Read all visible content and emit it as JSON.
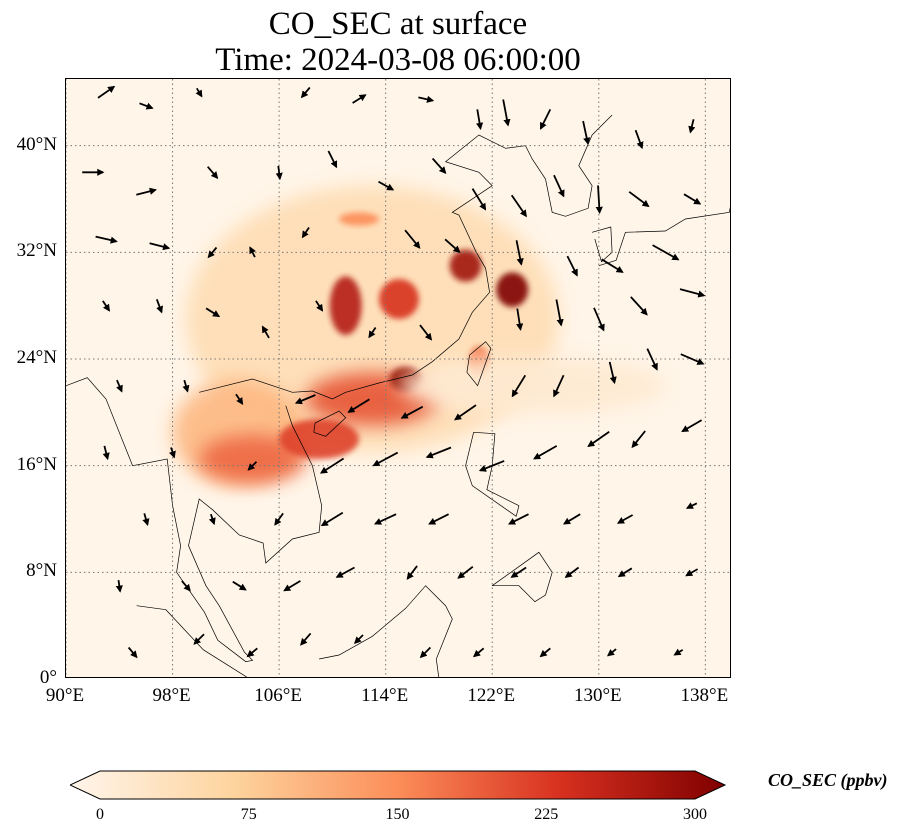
{
  "title": {
    "line1": "CO_SEC at surface",
    "line2": "Time: 2024-03-08 06:00:00"
  },
  "map": {
    "projection": "PlateCarree",
    "lon_range": [
      90,
      140
    ],
    "lat_range": [
      0,
      45
    ],
    "gridlines": true,
    "field": "CO_SEC",
    "overlay": "wind vectors"
  },
  "x_ticks": [
    {
      "lon": 90,
      "label": "90°E"
    },
    {
      "lon": 98,
      "label": "98°E"
    },
    {
      "lon": 106,
      "label": "106°E"
    },
    {
      "lon": 114,
      "label": "114°E"
    },
    {
      "lon": 122,
      "label": "122°E"
    },
    {
      "lon": 130,
      "label": "130°E"
    },
    {
      "lon": 138,
      "label": "138°E"
    }
  ],
  "y_ticks": [
    {
      "lat": 0,
      "label": "0°"
    },
    {
      "lat": 8,
      "label": "8°N"
    },
    {
      "lat": 16,
      "label": "16°N"
    },
    {
      "lat": 24,
      "label": "24°N"
    },
    {
      "lat": 32,
      "label": "32°N"
    },
    {
      "lat": 40,
      "label": "40°N"
    }
  ],
  "colorbar": {
    "label": "CO_SEC (ppbv)",
    "min": 0,
    "max": 300,
    "extend": "both",
    "colors": [
      "#fff5eb",
      "#fdd49e",
      "#fc8d59",
      "#d7301f",
      "#7f0000"
    ],
    "ticks": [
      {
        "value": 0,
        "label": "0"
      },
      {
        "value": 75,
        "label": "75"
      },
      {
        "value": 150,
        "label": "150"
      },
      {
        "value": 225,
        "label": "225"
      },
      {
        "value": 300,
        "label": "300"
      }
    ]
  },
  "plumes": [
    {
      "lon": 113,
      "lat": 27,
      "rlon": 14,
      "rlat": 10,
      "level": 0.18
    },
    {
      "lon": 103,
      "lat": 18.5,
      "rlon": 5,
      "rlat": 4,
      "level": 0.35
    },
    {
      "lon": 104,
      "lat": 16.5,
      "rlon": 4,
      "rlat": 1.8,
      "level": 0.6
    },
    {
      "lon": 113,
      "lat": 21,
      "rlon": 5,
      "rlat": 2,
      "level": 0.65
    },
    {
      "lon": 109,
      "lat": 18,
      "rlon": 3,
      "rlat": 1.5,
      "level": 0.7
    },
    {
      "lon": 115.5,
      "lat": 22.5,
      "rlon": 1.2,
      "rlat": 0.9,
      "level": 0.95
    },
    {
      "lon": 111,
      "lat": 28,
      "rlon": 1.2,
      "rlat": 2.2,
      "level": 0.85
    },
    {
      "lon": 115,
      "lat": 28.5,
      "rlon": 1.5,
      "rlat": 1.5,
      "level": 0.75
    },
    {
      "lon": 120,
      "lat": 31,
      "rlon": 1.2,
      "rlat": 1.2,
      "level": 0.9
    },
    {
      "lon": 123.5,
      "lat": 29.2,
      "rlon": 1.2,
      "rlat": 1.3,
      "level": 1.0
    },
    {
      "lon": 121,
      "lat": 23.8,
      "rlon": 0.8,
      "rlat": 1.2,
      "level": 0.55
    },
    {
      "lon": 112,
      "lat": 34.5,
      "rlon": 1.5,
      "rlat": 0.5,
      "level": 0.5
    },
    {
      "lon": 125,
      "lat": 22,
      "rlon": 10,
      "rlat": 2.2,
      "level": 0.08
    }
  ],
  "coast": [
    {
      "name": "china-vietnam-coast",
      "points": [
        [
          100,
          21.5
        ],
        [
          104,
          22.5
        ],
        [
          107,
          21.5
        ],
        [
          108.5,
          21.6
        ],
        [
          110,
          21
        ],
        [
          111,
          21.5
        ],
        [
          113.5,
          22.2
        ],
        [
          116,
          22.8
        ],
        [
          117.5,
          23.8
        ],
        [
          119.5,
          25.5
        ],
        [
          120.5,
          27.5
        ],
        [
          121.8,
          29
        ],
        [
          121.5,
          30.8
        ],
        [
          120.8,
          32
        ],
        [
          119.5,
          34.8
        ],
        [
          119,
          35
        ],
        [
          122,
          37
        ],
        [
          121,
          38
        ],
        [
          118.5,
          38.8
        ],
        [
          121,
          40.8
        ],
        [
          123,
          39.8
        ],
        [
          124.5,
          40
        ],
        [
          125,
          39
        ],
        [
          126,
          37.5
        ],
        [
          126.5,
          35
        ],
        [
          127.5,
          34.7
        ],
        [
          129.2,
          35.3
        ],
        [
          129.5,
          37
        ],
        [
          128.5,
          38.5
        ],
        [
          129.5,
          40.8
        ],
        [
          131,
          42.3
        ]
      ]
    },
    {
      "name": "vietnam-mainland",
      "points": [
        [
          106.5,
          20.5
        ],
        [
          107,
          19
        ],
        [
          108.5,
          16
        ],
        [
          109.2,
          13
        ],
        [
          109,
          11
        ],
        [
          107,
          10.5
        ],
        [
          105,
          8.7
        ],
        [
          104.8,
          10.2
        ],
        [
          103,
          10.8
        ],
        [
          101,
          12.7
        ],
        [
          100,
          13.5
        ],
        [
          99.2,
          10
        ],
        [
          100.5,
          7
        ],
        [
          101.5,
          5.5
        ],
        [
          103.4,
          2
        ],
        [
          104,
          1.4
        ],
        [
          103.5,
          1.3
        ],
        [
          101.4,
          2.9
        ],
        [
          100.4,
          5
        ],
        [
          98.3,
          8
        ],
        [
          98.6,
          10
        ],
        [
          98,
          13
        ],
        [
          97.6,
          16.5
        ],
        [
          95,
          16
        ],
        [
          94.2,
          18
        ],
        [
          93,
          21
        ],
        [
          91.6,
          22.6
        ],
        [
          90,
          22
        ]
      ]
    },
    {
      "name": "japan-honshu",
      "points": [
        [
          130,
          31
        ],
        [
          131.3,
          31.4
        ],
        [
          132,
          33.5
        ],
        [
          135,
          33.6
        ],
        [
          136.5,
          34.5
        ],
        [
          139.8,
          35
        ],
        [
          140,
          36
        ]
      ]
    },
    {
      "name": "hainan",
      "points": [
        [
          108.6,
          18.5
        ],
        [
          109.5,
          18.2
        ],
        [
          111,
          19.6
        ],
        [
          110.5,
          20.1
        ],
        [
          108.7,
          19.2
        ],
        [
          108.6,
          18.5
        ]
      ]
    },
    {
      "name": "taiwan",
      "points": [
        [
          120.1,
          23
        ],
        [
          120.9,
          22
        ],
        [
          121.9,
          24.8
        ],
        [
          121.5,
          25.3
        ],
        [
          120.3,
          24.3
        ],
        [
          120.1,
          23
        ]
      ]
    },
    {
      "name": "luzon",
      "points": [
        [
          120.6,
          18.5
        ],
        [
          122.2,
          18.4
        ],
        [
          122,
          16
        ],
        [
          121.6,
          14.2
        ],
        [
          124,
          13
        ],
        [
          123.8,
          12.2
        ],
        [
          120.5,
          14.5
        ],
        [
          120,
          16
        ],
        [
          120.6,
          18.5
        ]
      ]
    },
    {
      "name": "mindanao",
      "points": [
        [
          122,
          7
        ],
        [
          125.5,
          9.5
        ],
        [
          126.5,
          8
        ],
        [
          126,
          6.3
        ],
        [
          125.2,
          5.8
        ],
        [
          124,
          7
        ],
        [
          122,
          7
        ]
      ]
    },
    {
      "name": "borneo",
      "points": [
        [
          109,
          1.5
        ],
        [
          110.5,
          1.8
        ],
        [
          113,
          3.2
        ],
        [
          115.5,
          5.3
        ],
        [
          117,
          7
        ],
        [
          118.5,
          5.5
        ],
        [
          119,
          4.5
        ],
        [
          117.8,
          1.5
        ],
        [
          118,
          0
        ]
      ]
    },
    {
      "name": "sumatra",
      "points": [
        [
          95.3,
          5.5
        ],
        [
          97.5,
          5.2
        ],
        [
          100.3,
          2.2
        ],
        [
          103.8,
          0
        ]
      ]
    },
    {
      "name": "korea-kyushu",
      "points": [
        [
          129.5,
          33.5
        ],
        [
          130.9,
          33.9
        ],
        [
          131,
          32
        ],
        [
          130.2,
          31.3
        ],
        [
          129.7,
          33
        ]
      ]
    }
  ],
  "winds": [
    [
      93,
      44,
      1,
      0.7
    ],
    [
      96,
      43,
      0.8,
      -0.3
    ],
    [
      100,
      44,
      0.3,
      -0.5
    ],
    [
      108,
      44,
      -0.5,
      -0.6
    ],
    [
      112,
      43.5,
      0.8,
      0.5
    ],
    [
      117,
      43.5,
      0.9,
      -0.2
    ],
    [
      121,
      42,
      0.2,
      -1.2
    ],
    [
      123,
      42.5,
      0.3,
      -1.6
    ],
    [
      126,
      42,
      -0.6,
      -1.2
    ],
    [
      129,
      41,
      0.3,
      -1.4
    ],
    [
      133,
      40.5,
      0.4,
      -1.1
    ],
    [
      137,
      41.5,
      -0.2,
      -0.8
    ],
    [
      92,
      38,
      1.3,
      0
    ],
    [
      96,
      36.5,
      1.2,
      0.3
    ],
    [
      101,
      38,
      0.6,
      -0.7
    ],
    [
      106,
      38,
      0.1,
      -0.8
    ],
    [
      110,
      39,
      0.5,
      -1
    ],
    [
      114,
      37,
      0.9,
      -0.5
    ],
    [
      118,
      38.5,
      0.8,
      -0.9
    ],
    [
      121,
      36,
      0.8,
      -1.3
    ],
    [
      124,
      35.5,
      0.9,
      -1.3
    ],
    [
      127,
      37,
      0.6,
      -1.3
    ],
    [
      130,
      36,
      0.1,
      -1.7
    ],
    [
      133,
      36,
      1.2,
      -0.9
    ],
    [
      137,
      36,
      1,
      -0.6
    ],
    [
      93,
      33,
      1.3,
      -0.3
    ],
    [
      97,
      32.5,
      1.2,
      -0.3
    ],
    [
      101,
      32,
      -0.5,
      -0.6
    ],
    [
      104,
      32,
      -0.3,
      0.6
    ],
    [
      108,
      33.5,
      -0.4,
      -0.6
    ],
    [
      116,
      33,
      0.9,
      -1.1
    ],
    [
      119,
      32.5,
      0.9,
      -0.8
    ],
    [
      124,
      32,
      0.3,
      -1.5
    ],
    [
      128,
      31,
      0.6,
      -1.2
    ],
    [
      131,
      31,
      1.3,
      -0.8
    ],
    [
      135,
      32,
      1.6,
      -0.9
    ],
    [
      93,
      28,
      0.4,
      -0.6
    ],
    [
      97,
      28,
      0.3,
      -0.8
    ],
    [
      101,
      27.5,
      0.8,
      -0.5
    ],
    [
      105,
      26,
      -0.4,
      0.7
    ],
    [
      109,
      28,
      0.4,
      -0.6
    ],
    [
      113,
      26,
      -0.4,
      -0.6
    ],
    [
      117,
      26,
      0.7,
      -0.9
    ],
    [
      124,
      27,
      0.2,
      -1.3
    ],
    [
      127,
      27.5,
      0.3,
      -1.6
    ],
    [
      130,
      27,
      0.6,
      -1.4
    ],
    [
      133,
      28,
      1,
      -1.1
    ],
    [
      137,
      29,
      1.5,
      -0.4
    ],
    [
      94,
      22,
      0.3,
      -0.7
    ],
    [
      99,
      22,
      0.2,
      -0.7
    ],
    [
      103,
      21,
      0.4,
      -0.6
    ],
    [
      108,
      21,
      -1.2,
      -0.5
    ],
    [
      112,
      20.5,
      -1.3,
      -0.8
    ],
    [
      116,
      20,
      -1.3,
      -0.7
    ],
    [
      120,
      20,
      -1.3,
      -0.9
    ],
    [
      124,
      22,
      -0.8,
      -1.3
    ],
    [
      127,
      22,
      -0.6,
      -1.3
    ],
    [
      131,
      23,
      0.3,
      -1.3
    ],
    [
      134,
      24,
      0.6,
      -1.3
    ],
    [
      137,
      24,
      1.4,
      -0.6
    ],
    [
      93,
      17,
      0.2,
      -0.8
    ],
    [
      98,
      17,
      0.2,
      -0.6
    ],
    [
      104,
      16,
      -0.5,
      -0.5
    ],
    [
      110,
      16,
      -1.4,
      -0.9
    ],
    [
      114,
      16.5,
      -1.5,
      -0.8
    ],
    [
      118,
      17,
      -1.5,
      -0.6
    ],
    [
      122,
      16,
      -1.5,
      -0.6
    ],
    [
      126,
      17,
      -1.4,
      -0.8
    ],
    [
      130,
      18,
      -1.3,
      -0.9
    ],
    [
      133,
      18,
      -0.8,
      -1
    ],
    [
      137,
      19,
      -1.2,
      -0.7
    ],
    [
      96,
      12,
      0.2,
      -0.7
    ],
    [
      101,
      12,
      0.2,
      -0.6
    ],
    [
      106,
      12,
      -0.5,
      -0.7
    ],
    [
      110,
      12,
      -1.3,
      -0.8
    ],
    [
      114,
      12,
      -1.3,
      -0.6
    ],
    [
      118,
      12,
      -1.2,
      -0.6
    ],
    [
      124,
      12,
      -1.2,
      -0.6
    ],
    [
      128,
      12,
      -1,
      -0.6
    ],
    [
      132,
      12,
      -0.9,
      -0.5
    ],
    [
      137,
      13,
      -0.6,
      -0.3
    ],
    [
      94,
      7,
      0.1,
      -0.7
    ],
    [
      99,
      7,
      0.5,
      -0.6
    ],
    [
      103,
      7,
      0.8,
      -0.5
    ],
    [
      107,
      7,
      -1,
      -0.6
    ],
    [
      111,
      8,
      -1.1,
      -0.6
    ],
    [
      116,
      8,
      -0.6,
      -0.8
    ],
    [
      120,
      8,
      -0.9,
      -0.7
    ],
    [
      124,
      8,
      -0.9,
      -0.6
    ],
    [
      128,
      8,
      -0.8,
      -0.6
    ],
    [
      132,
      8,
      -0.8,
      -0.5
    ],
    [
      137,
      8,
      -0.7,
      -0.4
    ],
    [
      95,
      2,
      0.5,
      -0.6
    ],
    [
      100,
      3,
      -0.6,
      -0.6
    ],
    [
      104,
      2,
      -0.6,
      -0.5
    ],
    [
      108,
      3,
      -0.6,
      -0.7
    ],
    [
      112,
      3,
      -0.5,
      -0.5
    ],
    [
      117,
      2,
      -0.6,
      -0.6
    ],
    [
      121,
      2,
      -0.6,
      -0.5
    ],
    [
      126,
      2,
      -0.6,
      -0.5
    ],
    [
      131,
      2,
      -0.5,
      -0.4
    ],
    [
      136,
      2,
      -0.5,
      -0.3
    ]
  ]
}
